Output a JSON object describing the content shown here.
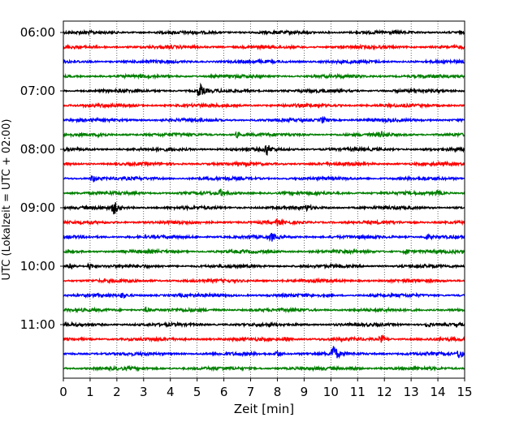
{
  "chart_data": {
    "type": "line",
    "title": "",
    "xlabel": "Zeit  [min]",
    "ylabel": "UTC (Lokalzeit = UTC + 02:00)",
    "xlim": [
      0,
      15
    ],
    "x_ticks": [
      "0",
      "1",
      "2",
      "3",
      "4",
      "5",
      "6",
      "7",
      "8",
      "9",
      "10",
      "11",
      "12",
      "13",
      "14",
      "15"
    ],
    "y_ticks": [
      "06:00",
      "07:00",
      "08:00",
      "09:00",
      "10:00",
      "11:00"
    ],
    "grid": "vertical dotted lines at each minute",
    "color_cycle": [
      "#000000",
      "#ff0000",
      "#0000ff",
      "#008000"
    ],
    "start_time": "06:00",
    "row_interval_min": 15,
    "series": [
      {
        "row_start": "06:00",
        "color": "#000000",
        "events": []
      },
      {
        "row_start": "06:15",
        "color": "#ff0000",
        "events": []
      },
      {
        "row_start": "06:30",
        "color": "#0000ff",
        "events": []
      },
      {
        "row_start": "06:45",
        "color": "#008000",
        "events": []
      },
      {
        "row_start": "07:00",
        "color": "#000000",
        "events": [
          {
            "t": 5.1,
            "amp": 9
          }
        ]
      },
      {
        "row_start": "07:15",
        "color": "#ff0000",
        "events": []
      },
      {
        "row_start": "07:30",
        "color": "#0000ff",
        "events": [
          {
            "t": 9.7,
            "amp": 4
          }
        ]
      },
      {
        "row_start": "07:45",
        "color": "#008000",
        "events": [
          {
            "t": 1.4,
            "amp": 3
          },
          {
            "t": 6.5,
            "amp": 3
          },
          {
            "t": 11.9,
            "amp": 3
          }
        ]
      },
      {
        "row_start": "08:00",
        "color": "#000000",
        "events": [
          {
            "t": 7.6,
            "amp": 7
          }
        ]
      },
      {
        "row_start": "08:15",
        "color": "#ff0000",
        "events": []
      },
      {
        "row_start": "08:30",
        "color": "#0000ff",
        "events": [
          {
            "t": 1.1,
            "amp": 5
          }
        ]
      },
      {
        "row_start": "08:45",
        "color": "#008000",
        "events": [
          {
            "t": 5.9,
            "amp": 4
          },
          {
            "t": 14.0,
            "amp": 3
          }
        ]
      },
      {
        "row_start": "09:00",
        "color": "#000000",
        "events": [
          {
            "t": 1.9,
            "amp": 8
          },
          {
            "t": 9.1,
            "amp": 3
          }
        ]
      },
      {
        "row_start": "09:15",
        "color": "#ff0000",
        "events": [
          {
            "t": 8.0,
            "amp": 3
          }
        ]
      },
      {
        "row_start": "09:30",
        "color": "#0000ff",
        "events": [
          {
            "t": 7.8,
            "amp": 4
          },
          {
            "t": 13.6,
            "amp": 3
          }
        ]
      },
      {
        "row_start": "09:45",
        "color": "#008000",
        "events": [
          {
            "t": 12.8,
            "amp": 4
          }
        ]
      },
      {
        "row_start": "10:00",
        "color": "#000000",
        "events": [
          {
            "t": 0.3,
            "amp": 4
          },
          {
            "t": 1.0,
            "amp": 4
          }
        ]
      },
      {
        "row_start": "10:15",
        "color": "#ff0000",
        "events": []
      },
      {
        "row_start": "10:30",
        "color": "#0000ff",
        "events": [
          {
            "t": 2.2,
            "amp": 3
          }
        ]
      },
      {
        "row_start": "10:45",
        "color": "#008000",
        "events": [
          {
            "t": 3.1,
            "amp": 3
          }
        ]
      },
      {
        "row_start": "11:00",
        "color": "#000000",
        "events": [
          {
            "t": 13.6,
            "amp": 3
          }
        ]
      },
      {
        "row_start": "11:15",
        "color": "#ff0000",
        "events": [
          {
            "t": 8.3,
            "amp": 3
          },
          {
            "t": 11.9,
            "amp": 4
          }
        ]
      },
      {
        "row_start": "11:30",
        "color": "#0000ff",
        "events": [
          {
            "t": 10.1,
            "amp": 12
          },
          {
            "t": 14.8,
            "amp": 6
          },
          {
            "t": 8.0,
            "amp": 4
          }
        ]
      },
      {
        "row_start": "11:45",
        "color": "#008000",
        "events": [
          {
            "t": 10.8,
            "amp": 3
          }
        ]
      }
    ]
  }
}
